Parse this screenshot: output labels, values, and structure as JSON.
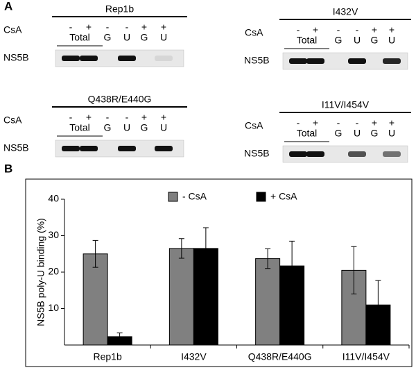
{
  "panel_a": {
    "label": "A",
    "blots": [
      {
        "title": "Rep1b",
        "csa_label": "CsA",
        "signs": [
          "-",
          "+",
          "-",
          "-",
          "+",
          "+"
        ],
        "lanes": [
          "Total",
          "G",
          "U",
          "G",
          "U"
        ],
        "row_label": "NS5B"
      },
      {
        "title": "I432V",
        "csa_label": "CsA",
        "signs": [
          "-",
          "+",
          "-",
          "-",
          "+",
          "+"
        ],
        "lanes": [
          "Total",
          "G",
          "U",
          "G",
          "U"
        ],
        "row_label": "NS5B"
      },
      {
        "title": "Q438R/E440G",
        "csa_label": "CsA",
        "signs": [
          "-",
          "+",
          "-",
          "-",
          "+",
          "+"
        ],
        "lanes": [
          "Total",
          "G",
          "U",
          "G",
          "U"
        ],
        "row_label": "NS5B"
      },
      {
        "title": "I11V/I454V",
        "csa_label": "CsA",
        "signs": [
          "-",
          "+",
          "-",
          "-",
          "+",
          "+"
        ],
        "lanes": [
          "Total",
          "G",
          "U",
          "G",
          "U"
        ],
        "row_label": "NS5B"
      }
    ]
  },
  "chart_data": {
    "type": "bar",
    "panel_label": "B",
    "y_label": "NS5B poly-U binding (%)",
    "categories": [
      "Rep1b",
      "I432V",
      "Q438R/E440G",
      "I11V/I454V"
    ],
    "series": [
      {
        "name": "- CsA",
        "color": "#808080",
        "values": [
          25,
          26.5,
          23.7,
          20.5
        ],
        "errors": [
          3.7,
          2.7,
          2.7,
          6.5
        ]
      },
      {
        "name": "+ CsA",
        "color": "#000000",
        "values": [
          2.3,
          26.5,
          21.7,
          11
        ],
        "errors": [
          1,
          5.7,
          6.8,
          6.7
        ]
      }
    ],
    "ylim": [
      0,
      40
    ],
    "yticks": [
      10,
      20,
      30,
      40
    ],
    "legend": "top"
  }
}
